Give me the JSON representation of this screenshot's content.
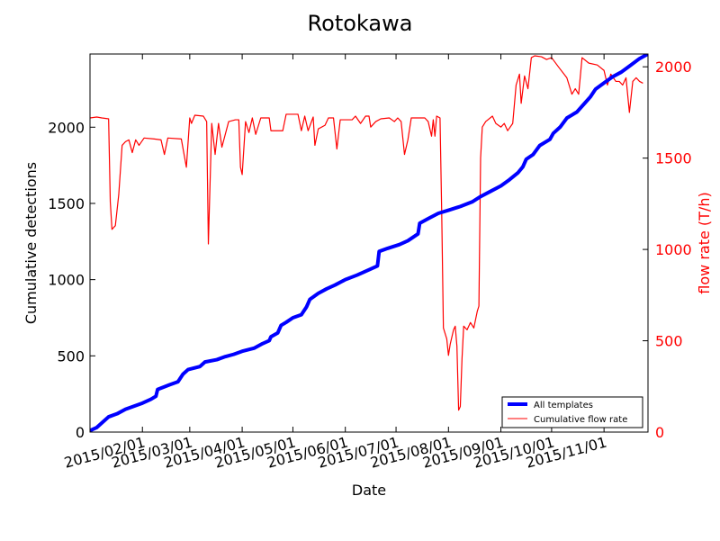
{
  "chart_data": {
    "type": "line",
    "title": "Rotokawa",
    "xlabel": "Date",
    "ylabel": "Cumulative detections",
    "y2label": "flow rate (T/h)",
    "x_range": [
      "2015-01-01",
      "2015-11-27"
    ],
    "ylim": [
      0,
      2480
    ],
    "y2lim": [
      0,
      2070
    ],
    "x_ticks": [
      "2015/02/01",
      "2015/03/01",
      "2015/04/01",
      "2015/05/01",
      "2015/06/01",
      "2015/07/01",
      "2015/08/01",
      "2015/09/01",
      "2015/10/01",
      "2015/11/01"
    ],
    "y_ticks": [
      0,
      500,
      1000,
      1500,
      2000
    ],
    "y2_ticks": [
      0,
      500,
      1000,
      1500,
      2000
    ],
    "grid": false,
    "legend_position": "lower right",
    "colors": {
      "detections": "#0000ff",
      "flow": "#ff0000",
      "right_axis": "#ff0000"
    },
    "series": [
      {
        "name": "All templates",
        "axis": "left",
        "color": "#0000ff",
        "points": [
          [
            "2015-01-01",
            10
          ],
          [
            "2015-01-05",
            30
          ],
          [
            "2015-01-09",
            70
          ],
          [
            "2015-01-12",
            100
          ],
          [
            "2015-01-17",
            120
          ],
          [
            "2015-01-22",
            150
          ],
          [
            "2015-01-27",
            170
          ],
          [
            "2015-02-01",
            190
          ],
          [
            "2015-02-06",
            215
          ],
          [
            "2015-02-09",
            235
          ],
          [
            "2015-02-10",
            280
          ],
          [
            "2015-02-17",
            310
          ],
          [
            "2015-02-22",
            330
          ],
          [
            "2015-02-25",
            380
          ],
          [
            "2015-02-28",
            410
          ],
          [
            "2015-03-07",
            430
          ],
          [
            "2015-03-10",
            460
          ],
          [
            "2015-03-17",
            475
          ],
          [
            "2015-03-22",
            495
          ],
          [
            "2015-03-27",
            510
          ],
          [
            "2015-04-01",
            530
          ],
          [
            "2015-04-08",
            550
          ],
          [
            "2015-04-13",
            580
          ],
          [
            "2015-04-17",
            600
          ],
          [
            "2015-04-18",
            625
          ],
          [
            "2015-04-22",
            650
          ],
          [
            "2015-04-24",
            700
          ],
          [
            "2015-04-27",
            720
          ],
          [
            "2015-05-01",
            750
          ],
          [
            "2015-05-06",
            770
          ],
          [
            "2015-05-09",
            820
          ],
          [
            "2015-05-11",
            870
          ],
          [
            "2015-05-16",
            910
          ],
          [
            "2015-05-21",
            940
          ],
          [
            "2015-05-26",
            965
          ],
          [
            "2015-06-01",
            1000
          ],
          [
            "2015-06-08",
            1030
          ],
          [
            "2015-06-15",
            1065
          ],
          [
            "2015-06-20",
            1090
          ],
          [
            "2015-06-21",
            1185
          ],
          [
            "2015-06-26",
            1205
          ],
          [
            "2015-07-03",
            1230
          ],
          [
            "2015-07-08",
            1255
          ],
          [
            "2015-07-14",
            1300
          ],
          [
            "2015-07-15",
            1370
          ],
          [
            "2015-07-20",
            1400
          ],
          [
            "2015-07-26",
            1435
          ],
          [
            "2015-08-01",
            1455
          ],
          [
            "2015-08-08",
            1480
          ],
          [
            "2015-08-15",
            1510
          ],
          [
            "2015-08-20",
            1545
          ],
          [
            "2015-08-26",
            1580
          ],
          [
            "2015-09-01",
            1615
          ],
          [
            "2015-09-06",
            1655
          ],
          [
            "2015-09-11",
            1700
          ],
          [
            "2015-09-14",
            1740
          ],
          [
            "2015-09-16",
            1790
          ],
          [
            "2015-09-20",
            1820
          ],
          [
            "2015-09-24",
            1880
          ],
          [
            "2015-09-30",
            1920
          ],
          [
            "2015-10-02",
            1960
          ],
          [
            "2015-10-06",
            2000
          ],
          [
            "2015-10-10",
            2060
          ],
          [
            "2015-10-16",
            2100
          ],
          [
            "2015-10-20",
            2150
          ],
          [
            "2015-10-24",
            2200
          ],
          [
            "2015-10-27",
            2250
          ],
          [
            "2015-11-01",
            2290
          ],
          [
            "2015-11-06",
            2330
          ],
          [
            "2015-11-11",
            2360
          ],
          [
            "2015-11-16",
            2400
          ],
          [
            "2015-11-22",
            2450
          ],
          [
            "2015-11-27",
            2480
          ]
        ]
      },
      {
        "name": "Cumulative flow rate",
        "axis": "right",
        "color": "#ff0000",
        "points": [
          [
            "2015-01-01",
            1720
          ],
          [
            "2015-01-05",
            1725
          ],
          [
            "2015-01-08",
            1720
          ],
          [
            "2015-01-12",
            1715
          ],
          [
            "2015-01-13",
            1260
          ],
          [
            "2015-01-14",
            1110
          ],
          [
            "2015-01-16",
            1130
          ],
          [
            "2015-01-18",
            1300
          ],
          [
            "2015-01-20",
            1570
          ],
          [
            "2015-01-22",
            1590
          ],
          [
            "2015-01-24",
            1600
          ],
          [
            "2015-01-26",
            1530
          ],
          [
            "2015-01-28",
            1600
          ],
          [
            "2015-01-30",
            1570
          ],
          [
            "2015-02-02",
            1610
          ],
          [
            "2015-02-08",
            1605
          ],
          [
            "2015-02-12",
            1600
          ],
          [
            "2015-02-14",
            1520
          ],
          [
            "2015-02-16",
            1610
          ],
          [
            "2015-02-24",
            1605
          ],
          [
            "2015-02-27",
            1450
          ],
          [
            "2015-03-01",
            1720
          ],
          [
            "2015-03-02",
            1690
          ],
          [
            "2015-03-04",
            1735
          ],
          [
            "2015-03-09",
            1730
          ],
          [
            "2015-03-11",
            1700
          ],
          [
            "2015-03-12",
            1030
          ],
          [
            "2015-03-14",
            1690
          ],
          [
            "2015-03-16",
            1520
          ],
          [
            "2015-03-18",
            1690
          ],
          [
            "2015-03-20",
            1560
          ],
          [
            "2015-03-24",
            1700
          ],
          [
            "2015-03-28",
            1710
          ],
          [
            "2015-03-30",
            1710
          ],
          [
            "2015-03-31",
            1450
          ],
          [
            "2015-04-01",
            1410
          ],
          [
            "2015-04-03",
            1700
          ],
          [
            "2015-04-05",
            1640
          ],
          [
            "2015-04-07",
            1720
          ],
          [
            "2015-04-09",
            1630
          ],
          [
            "2015-04-12",
            1720
          ],
          [
            "2015-04-17",
            1720
          ],
          [
            "2015-04-18",
            1650
          ],
          [
            "2015-04-25",
            1650
          ],
          [
            "2015-04-27",
            1740
          ],
          [
            "2015-05-04",
            1740
          ],
          [
            "2015-05-06",
            1650
          ],
          [
            "2015-05-08",
            1730
          ],
          [
            "2015-05-10",
            1650
          ],
          [
            "2015-05-13",
            1725
          ],
          [
            "2015-05-14",
            1570
          ],
          [
            "2015-05-16",
            1660
          ],
          [
            "2015-05-20",
            1680
          ],
          [
            "2015-05-22",
            1720
          ],
          [
            "2015-05-25",
            1720
          ],
          [
            "2015-05-27",
            1550
          ],
          [
            "2015-05-29",
            1710
          ],
          [
            "2015-06-05",
            1710
          ],
          [
            "2015-06-07",
            1730
          ],
          [
            "2015-06-10",
            1690
          ],
          [
            "2015-06-13",
            1730
          ],
          [
            "2015-06-15",
            1730
          ],
          [
            "2015-06-16",
            1670
          ],
          [
            "2015-06-19",
            1700
          ],
          [
            "2015-06-22",
            1715
          ],
          [
            "2015-06-27",
            1720
          ],
          [
            "2015-06-30",
            1700
          ],
          [
            "2015-07-02",
            1720
          ],
          [
            "2015-07-04",
            1700
          ],
          [
            "2015-07-06",
            1520
          ],
          [
            "2015-07-08",
            1600
          ],
          [
            "2015-07-10",
            1720
          ],
          [
            "2015-07-18",
            1720
          ],
          [
            "2015-07-20",
            1700
          ],
          [
            "2015-07-22",
            1620
          ],
          [
            "2015-07-23",
            1710
          ],
          [
            "2015-07-24",
            1620
          ],
          [
            "2015-07-25",
            1730
          ],
          [
            "2015-07-27",
            1720
          ],
          [
            "2015-07-28",
            1200
          ],
          [
            "2015-07-29",
            570
          ],
          [
            "2015-07-31",
            510
          ],
          [
            "2015-08-01",
            420
          ],
          [
            "2015-08-02",
            480
          ],
          [
            "2015-08-04",
            560
          ],
          [
            "2015-08-05",
            580
          ],
          [
            "2015-08-06",
            470
          ],
          [
            "2015-08-07",
            120
          ],
          [
            "2015-08-08",
            140
          ],
          [
            "2015-08-09",
            400
          ],
          [
            "2015-08-10",
            580
          ],
          [
            "2015-08-12",
            560
          ],
          [
            "2015-08-14",
            600
          ],
          [
            "2015-08-16",
            570
          ],
          [
            "2015-08-18",
            660
          ],
          [
            "2015-08-19",
            690
          ],
          [
            "2015-08-20",
            1500
          ],
          [
            "2015-08-21",
            1670
          ],
          [
            "2015-08-23",
            1700
          ],
          [
            "2015-08-27",
            1730
          ],
          [
            "2015-08-29",
            1690
          ],
          [
            "2015-09-01",
            1670
          ],
          [
            "2015-09-03",
            1690
          ],
          [
            "2015-09-05",
            1650
          ],
          [
            "2015-09-08",
            1690
          ],
          [
            "2015-09-10",
            1900
          ],
          [
            "2015-09-12",
            1960
          ],
          [
            "2015-09-13",
            1800
          ],
          [
            "2015-09-15",
            1950
          ],
          [
            "2015-09-17",
            1880
          ],
          [
            "2015-09-19",
            2050
          ],
          [
            "2015-09-21",
            2060
          ],
          [
            "2015-09-25",
            2055
          ],
          [
            "2015-09-28",
            2040
          ],
          [
            "2015-10-01",
            2050
          ],
          [
            "2015-10-05",
            2000
          ],
          [
            "2015-10-10",
            1940
          ],
          [
            "2015-10-13",
            1850
          ],
          [
            "2015-10-15",
            1880
          ],
          [
            "2015-10-17",
            1850
          ],
          [
            "2015-10-19",
            2050
          ],
          [
            "2015-10-23",
            2020
          ],
          [
            "2015-10-28",
            2010
          ],
          [
            "2015-11-01",
            1980
          ],
          [
            "2015-11-03",
            1900
          ],
          [
            "2015-11-05",
            1960
          ],
          [
            "2015-11-08",
            1920
          ],
          [
            "2015-11-10",
            1920
          ],
          [
            "2015-11-12",
            1900
          ],
          [
            "2015-11-14",
            1940
          ],
          [
            "2015-11-16",
            1750
          ],
          [
            "2015-11-18",
            1920
          ],
          [
            "2015-11-20",
            1940
          ],
          [
            "2015-11-22",
            1920
          ],
          [
            "2015-11-24",
            1910
          ]
        ]
      }
    ]
  }
}
